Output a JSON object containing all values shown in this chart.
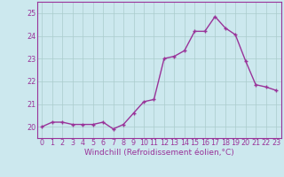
{
  "x": [
    0,
    1,
    2,
    3,
    4,
    5,
    6,
    7,
    8,
    9,
    10,
    11,
    12,
    13,
    14,
    15,
    16,
    17,
    18,
    19,
    20,
    21,
    22,
    23
  ],
  "y": [
    20.0,
    20.2,
    20.2,
    20.1,
    20.1,
    20.1,
    20.2,
    19.9,
    20.1,
    20.6,
    21.1,
    21.2,
    23.0,
    23.1,
    23.35,
    24.2,
    24.2,
    24.85,
    24.35,
    24.05,
    22.9,
    21.85,
    21.75,
    21.6
  ],
  "line_color": "#993399",
  "marker": "+",
  "marker_size": 3.5,
  "marker_lw": 1.0,
  "bg_color": "#cce8ee",
  "grid_color": "#aacccc",
  "xlabel": "Windchill (Refroidissement éolien,°C)",
  "ylabel": "",
  "ylim": [
    19.5,
    25.5
  ],
  "xlim": [
    -0.5,
    23.5
  ],
  "yticks": [
    20,
    21,
    22,
    23,
    24,
    25
  ],
  "xticks": [
    0,
    1,
    2,
    3,
    4,
    5,
    6,
    7,
    8,
    9,
    10,
    11,
    12,
    13,
    14,
    15,
    16,
    17,
    18,
    19,
    20,
    21,
    22,
    23
  ],
  "line_width": 1.0,
  "tick_label_fontsize": 5.8,
  "xlabel_fontsize": 6.5,
  "xlabel_color": "#993399",
  "tick_color": "#993399",
  "spine_color": "#993399"
}
